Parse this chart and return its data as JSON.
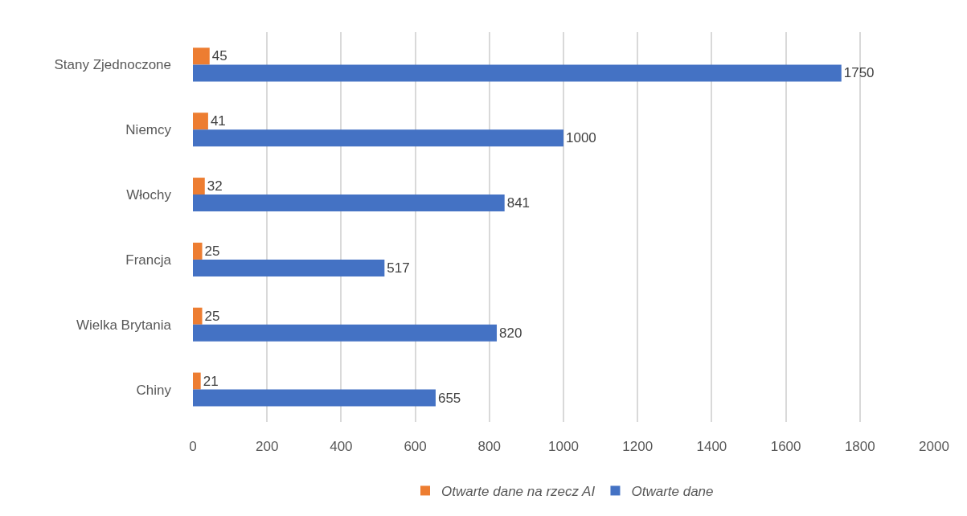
{
  "chart_data": {
    "type": "bar",
    "orientation": "horizontal",
    "categories": [
      "Stany Zjednoczone",
      "Niemcy",
      "Włochy",
      "Francja",
      "Wielka Brytania",
      "Chiny"
    ],
    "series": [
      {
        "name": "Otwarte dane na rzecz AI",
        "color": "#ed7d31",
        "values": [
          45,
          41,
          32,
          25,
          25,
          21
        ]
      },
      {
        "name": "Otwarte dane",
        "color": "#4472c4",
        "values": [
          1750,
          1000,
          841,
          517,
          820,
          655
        ]
      }
    ],
    "xlim": [
      0,
      2000
    ],
    "xticks": [
      0,
      200,
      400,
      600,
      800,
      1000,
      1200,
      1400,
      1600,
      1800,
      2000
    ],
    "grid": "x",
    "legend": "bottom",
    "data_labels": true
  }
}
